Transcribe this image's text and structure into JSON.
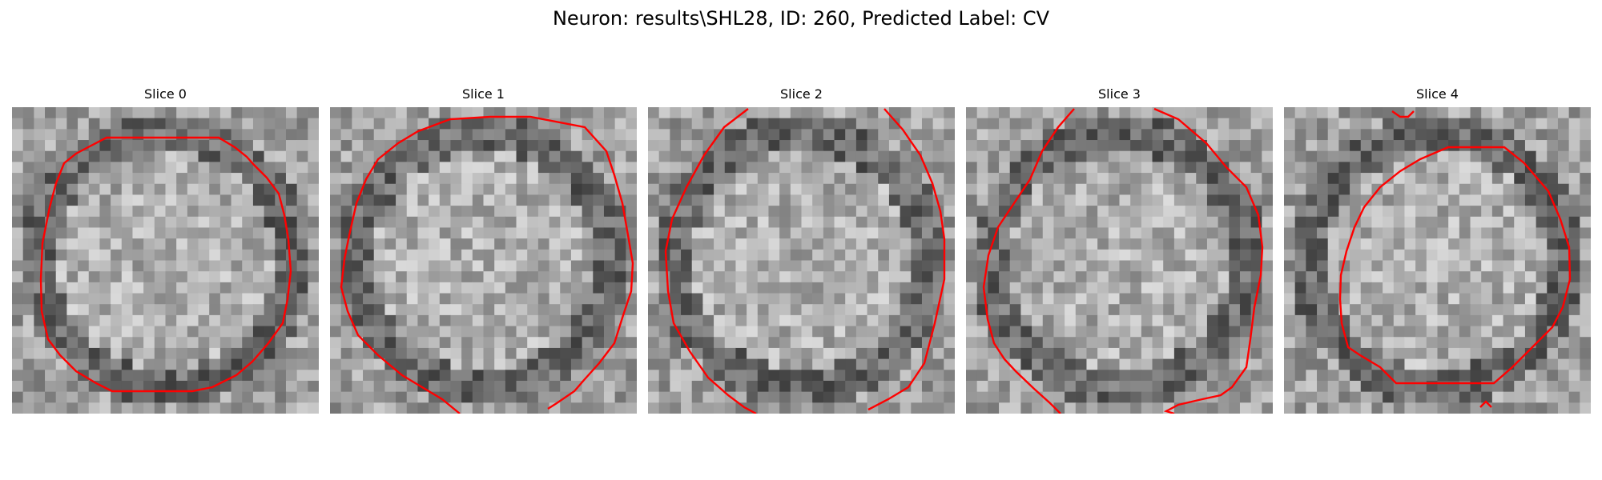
{
  "figure": {
    "title": "Neuron: results\\SHL28, ID: 260, Predicted Label: CV"
  },
  "panels": [
    {
      "title": "Slice 0"
    },
    {
      "title": "Slice 1"
    },
    {
      "title": "Slice 2"
    },
    {
      "title": "Slice 3"
    },
    {
      "title": "Slice 4"
    }
  ],
  "colors": {
    "contour": "#ff0000",
    "colormap": "grayscale"
  }
}
